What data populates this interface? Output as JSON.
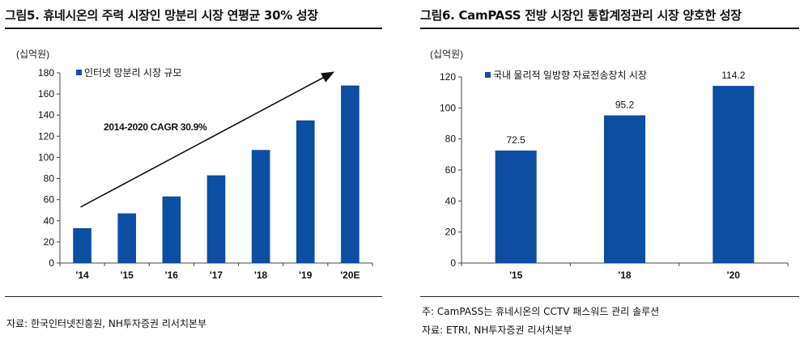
{
  "figures": [
    {
      "title": "그림5. 휴네시온의 주력 시장인 망분리 시장 연평균 30% 성장",
      "source": "자료: 한국인터넷진흥원, NH투자증권 리서치본부"
    },
    {
      "title": "그림6. CamPASS 전방 시장인 통합계정관리 시장 양호한 성장",
      "note": "주: CamPASS는 휴네시온의 CCTV 패스워드 관리 솔루션",
      "source": "자료: ETRI, NH투자증권 리서치본부"
    }
  ],
  "chart_data": [
    {
      "type": "bar",
      "unit_label": "(십억원)",
      "categories": [
        "'14",
        "'15",
        "'16",
        "'17",
        "'18",
        "'19",
        "'20E"
      ],
      "series": [
        {
          "name": "인터넷 망분리 시장 규모",
          "values": [
            33,
            47,
            63,
            83,
            107,
            135,
            168
          ]
        }
      ],
      "annotation": "2014-2020 CAGR 30.9%",
      "ylim": [
        0,
        180
      ],
      "yticks": [
        0,
        20,
        40,
        60,
        80,
        100,
        120,
        140,
        160,
        180
      ],
      "legend_position": "top-left",
      "grid": false,
      "bar_color": "#0b4ea2"
    },
    {
      "type": "bar",
      "unit_label": "(십억원)",
      "categories": [
        "'15",
        "'18",
        "'20"
      ],
      "series": [
        {
          "name": "국내 물리적 일방향 자료전송장치 시장",
          "values": [
            72.5,
            95.2,
            114.2
          ]
        }
      ],
      "data_labels": [
        "72.5",
        "95.2",
        "114.2"
      ],
      "ylim": [
        0,
        120
      ],
      "yticks": [
        0,
        20,
        40,
        60,
        80,
        100,
        120
      ],
      "legend_position": "top-left",
      "grid": false,
      "bar_color": "#0b4ea2"
    }
  ]
}
